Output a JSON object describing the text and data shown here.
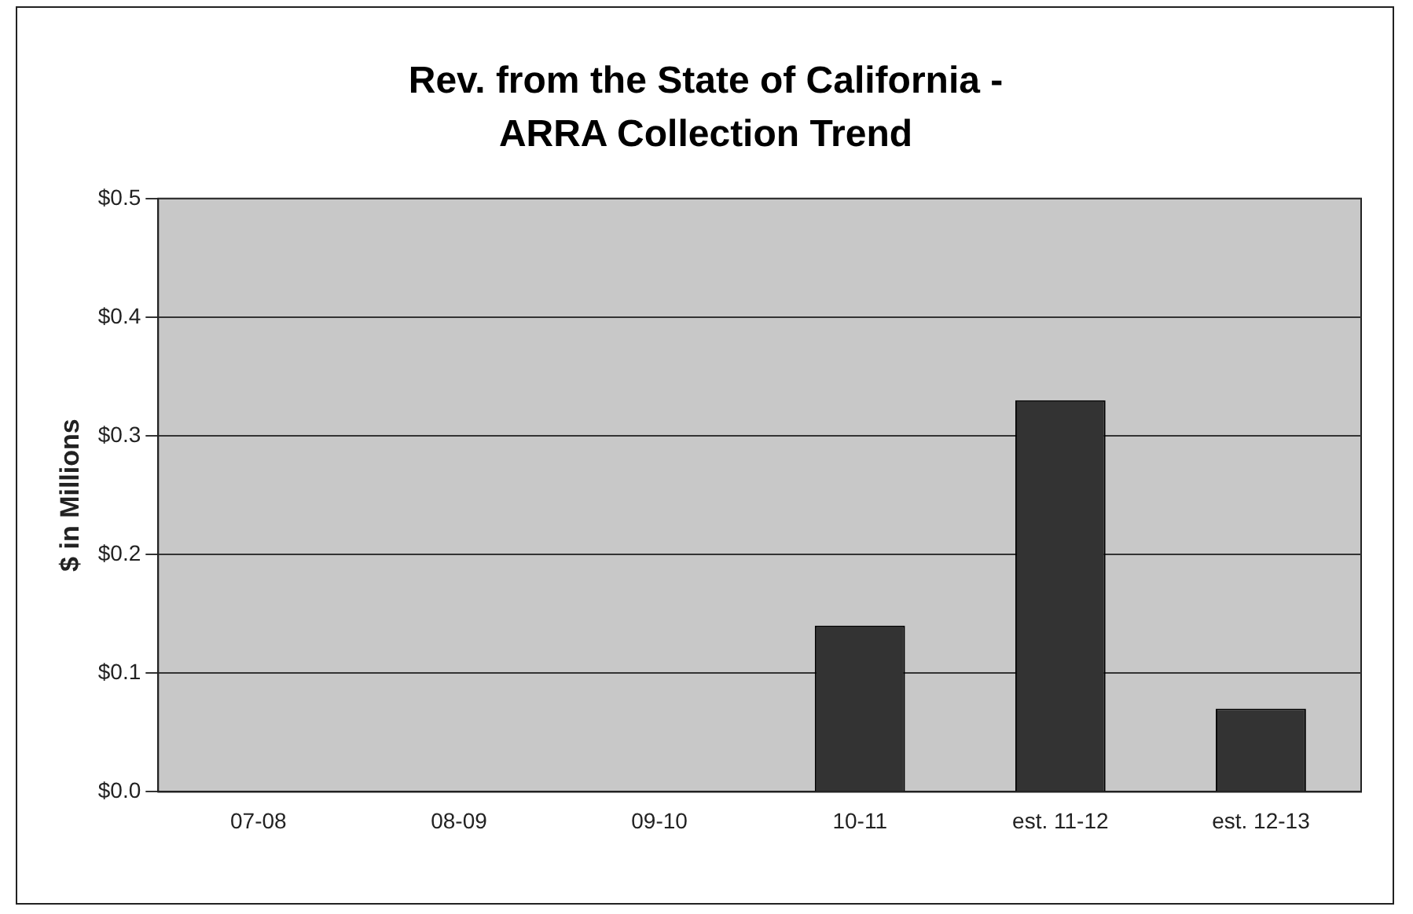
{
  "chart_data": {
    "type": "bar",
    "title": "Rev. from the State of California - ARRA Collection Trend",
    "ylabel": "$ in Millions",
    "categories": [
      "07-08",
      "08-09",
      "09-10",
      "10-11",
      "est. 11-12",
      "est. 12-13"
    ],
    "values": [
      0,
      0,
      0,
      0.14,
      0.33,
      0.07
    ],
    "color": "#333333",
    "ylim": [
      0,
      0.5
    ],
    "yticks": [
      {
        "value": 0,
        "label": "$0.0"
      },
      {
        "value": 0.1,
        "label": "$0.1"
      },
      {
        "value": 0.2,
        "label": "$0.2"
      },
      {
        "value": 0.3,
        "label": "$0.3"
      },
      {
        "value": 0.4,
        "label": "$0.4"
      },
      {
        "value": 0.5,
        "label": "$0.5"
      }
    ],
    "grid": "y",
    "legend": false
  }
}
